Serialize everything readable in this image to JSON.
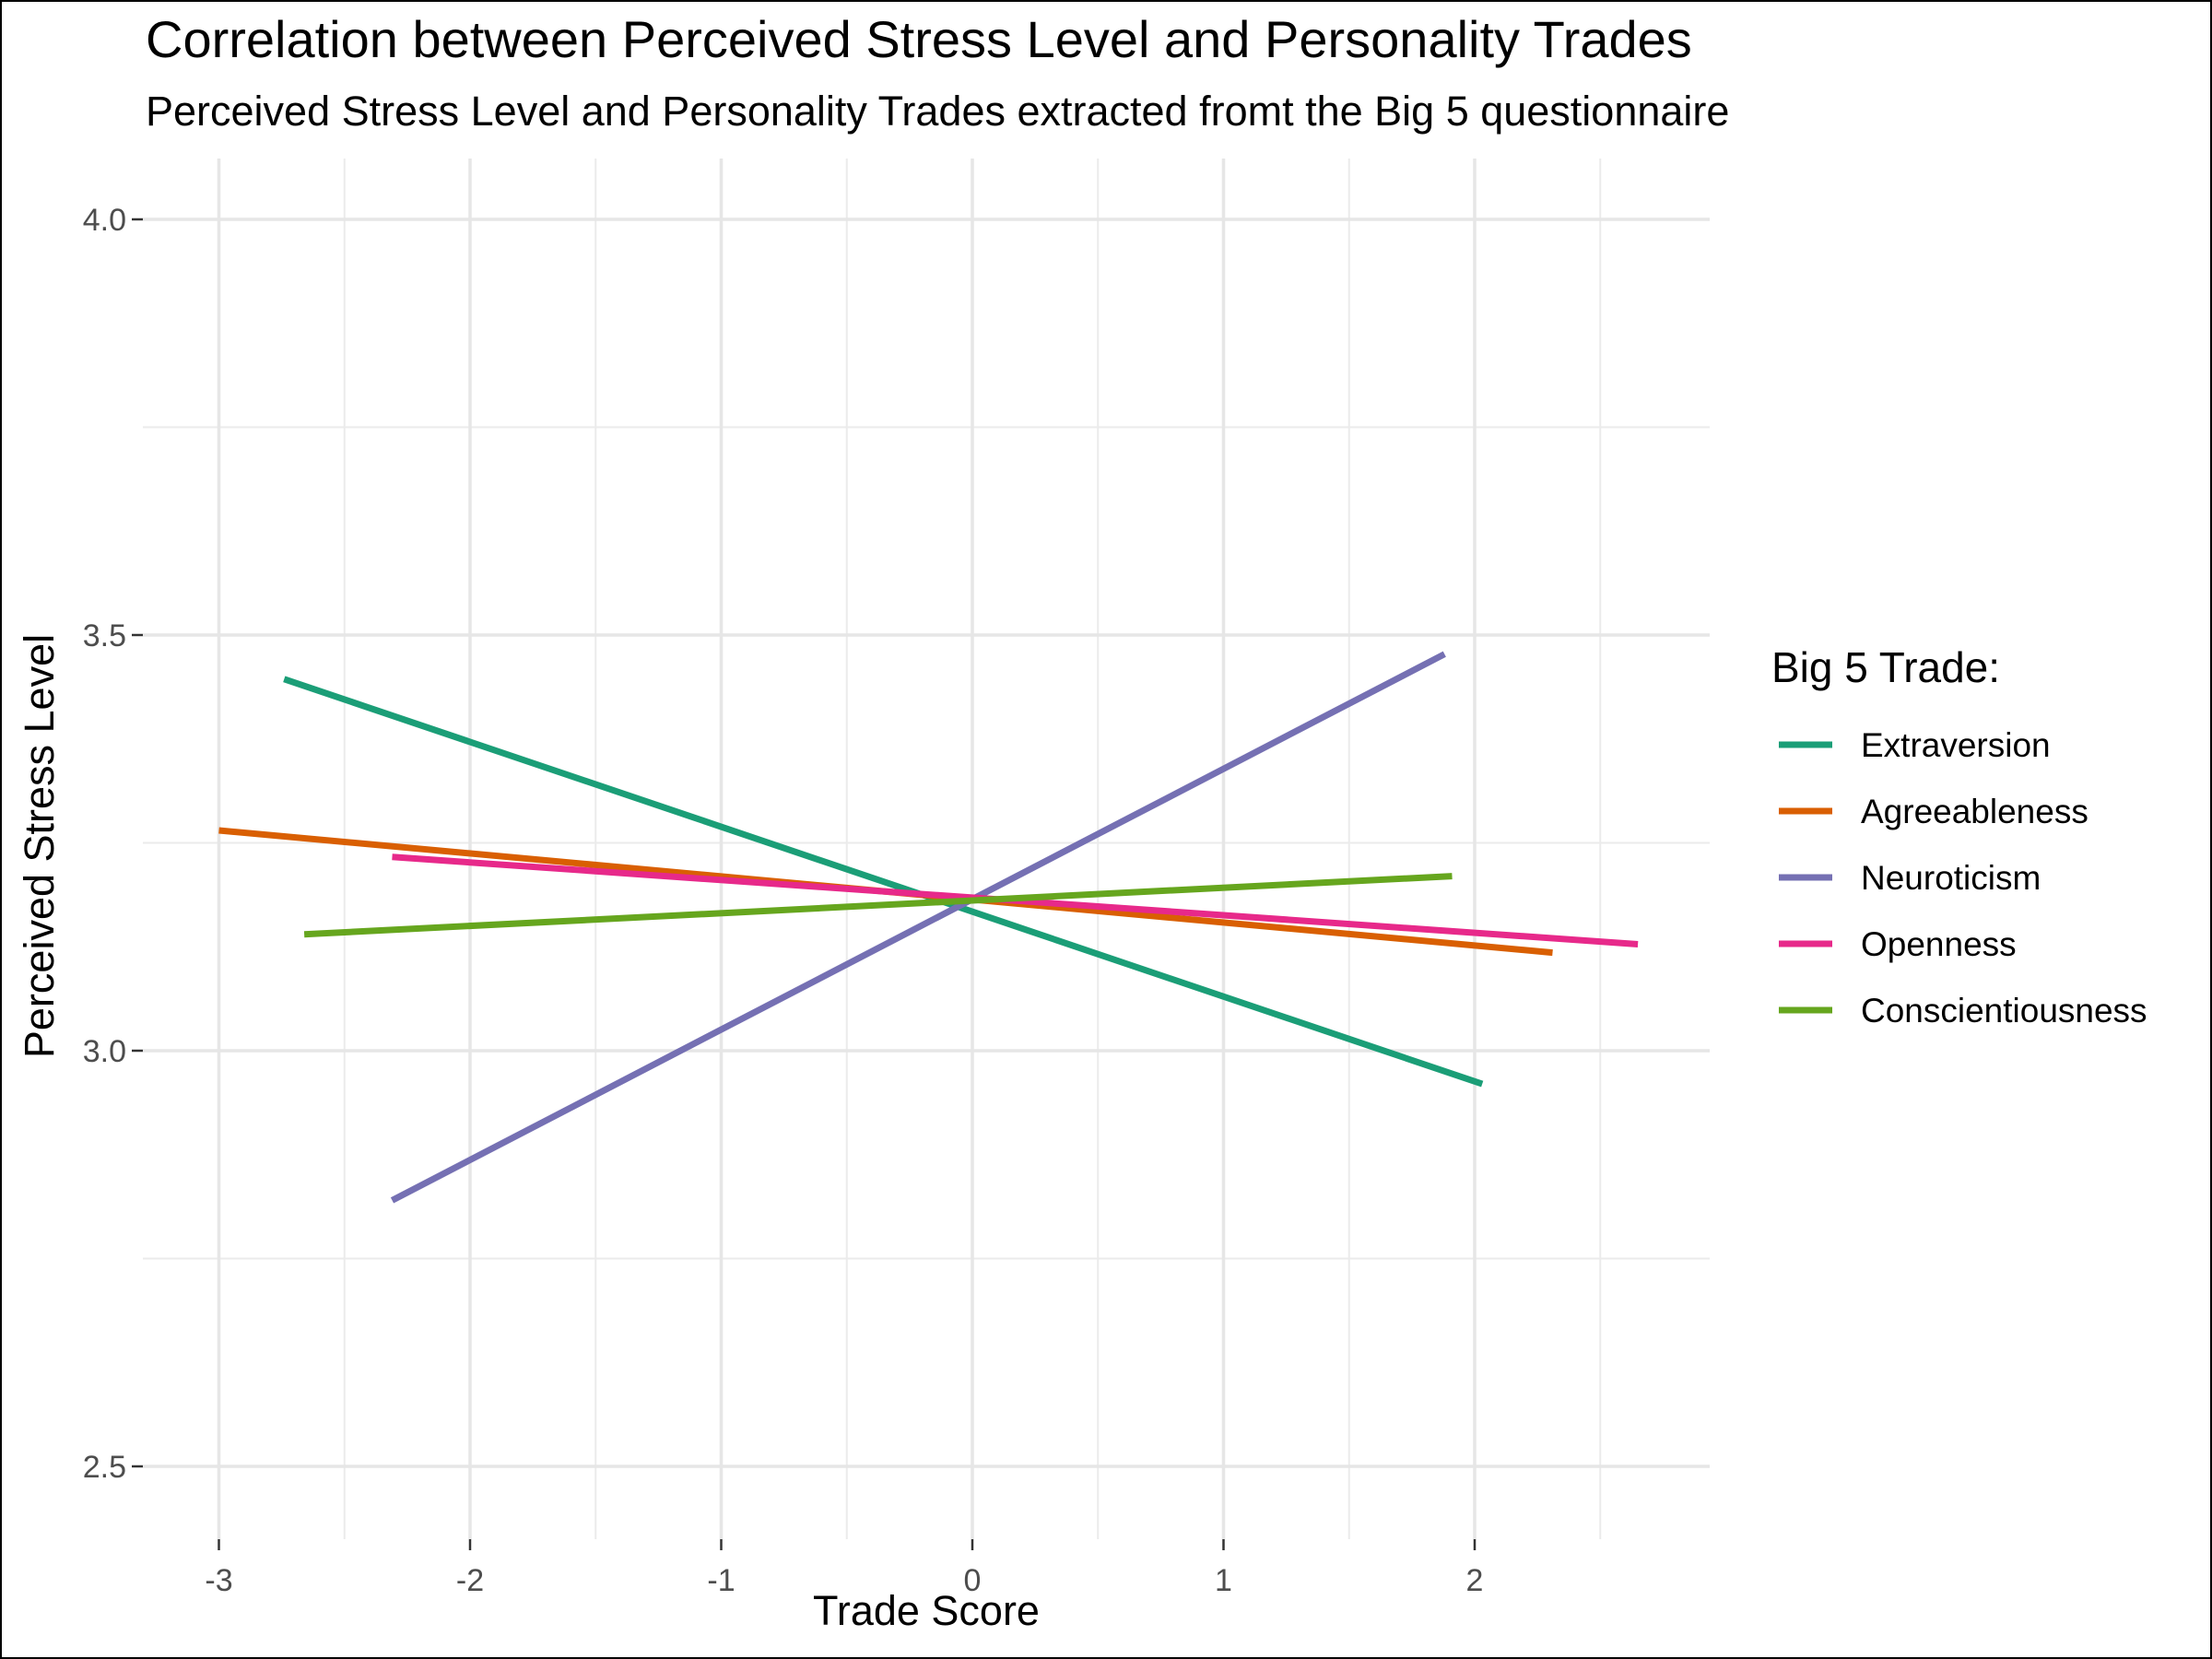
{
  "chart_data": {
    "type": "line",
    "title": "Correlation between Perceived Stress Level and Personality Trades",
    "subtitle": "Perceived Stress Level and Personality Trades extracted fromt the Big 5 questionnaire",
    "xlabel": "Trade Score",
    "ylabel": "Perceived Stress Level",
    "xlim": [
      -3.3,
      2.95
    ],
    "ylim": [
      2.45,
      4.08
    ],
    "xticks": [
      -3,
      -2,
      -1,
      0,
      1,
      2
    ],
    "yticks": [
      2.5,
      3.0,
      3.5,
      4.0
    ],
    "xtick_labels": [
      "-3",
      "-2",
      "-1",
      "0",
      "1",
      "2"
    ],
    "ytick_labels": [
      "2.5",
      "3.0",
      "3.5",
      "4.0"
    ],
    "grid": true,
    "legend": {
      "title": "Big 5 Trade:",
      "position": "right"
    },
    "series": [
      {
        "name": "Extraversion",
        "color": "#1b9e77",
        "x": [
          -2.74,
          2.03
        ],
        "y": [
          3.447,
          2.96
        ]
      },
      {
        "name": "Agreeableness",
        "color": "#d95f02",
        "x": [
          -3.0,
          2.31
        ],
        "y": [
          3.265,
          3.118
        ]
      },
      {
        "name": "Neuroticism",
        "color": "#7570b3",
        "x": [
          -2.31,
          1.88
        ],
        "y": [
          2.82,
          3.477
        ]
      },
      {
        "name": "Openness",
        "color": "#e7298a",
        "x": [
          -2.31,
          2.65
        ],
        "y": [
          3.233,
          3.128
        ]
      },
      {
        "name": "Conscientiousness",
        "color": "#66a61e",
        "x": [
          -2.66,
          1.91
        ],
        "y": [
          3.14,
          3.21
        ]
      }
    ]
  }
}
